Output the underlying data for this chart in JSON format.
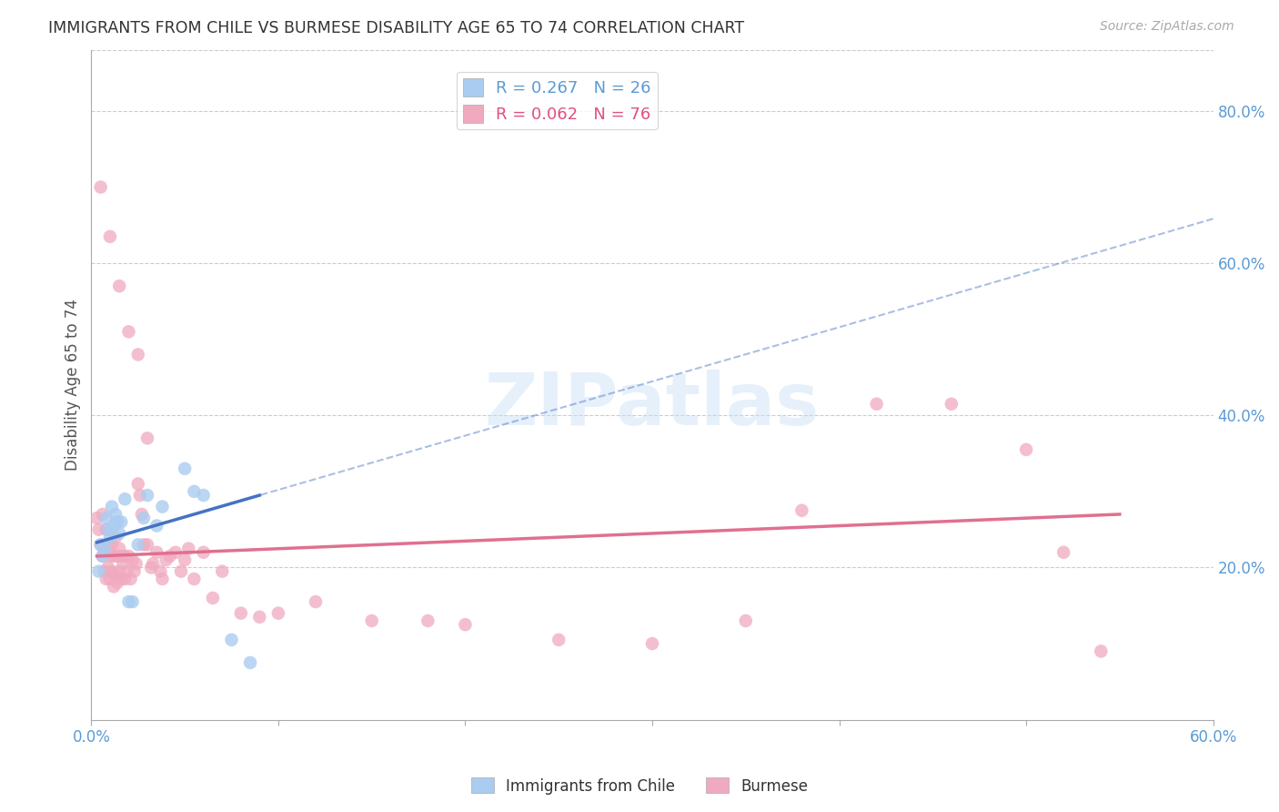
{
  "title": "IMMIGRANTS FROM CHILE VS BURMESE DISABILITY AGE 65 TO 74 CORRELATION CHART",
  "source": "Source: ZipAtlas.com",
  "ylabel": "Disability Age 65 to 74",
  "right_ytick_vals": [
    0.2,
    0.4,
    0.6,
    0.8
  ],
  "xlim": [
    0.0,
    0.6
  ],
  "ylim": [
    0.0,
    0.88
  ],
  "legend1_label": "R = 0.267   N = 26",
  "legend2_label": "R = 0.062   N = 76",
  "legend1_color": "#aaccf0",
  "legend2_color": "#f0aac0",
  "line1_color": "#4472c4",
  "line2_color": "#e07090",
  "watermark": "ZIPatlas",
  "chile_x": [
    0.004,
    0.005,
    0.006,
    0.007,
    0.008,
    0.009,
    0.01,
    0.011,
    0.012,
    0.013,
    0.014,
    0.015,
    0.016,
    0.018,
    0.02,
    0.022,
    0.025,
    0.028,
    0.03,
    0.035,
    0.038,
    0.05,
    0.055,
    0.06,
    0.075,
    0.085
  ],
  "chile_y": [
    0.195,
    0.23,
    0.215,
    0.225,
    0.265,
    0.25,
    0.24,
    0.28,
    0.255,
    0.27,
    0.26,
    0.245,
    0.26,
    0.29,
    0.155,
    0.155,
    0.23,
    0.265,
    0.295,
    0.255,
    0.28,
    0.33,
    0.3,
    0.295,
    0.105,
    0.075
  ],
  "burmese_x": [
    0.003,
    0.004,
    0.005,
    0.006,
    0.006,
    0.007,
    0.007,
    0.008,
    0.008,
    0.009,
    0.009,
    0.01,
    0.01,
    0.011,
    0.011,
    0.012,
    0.012,
    0.013,
    0.013,
    0.014,
    0.014,
    0.015,
    0.015,
    0.016,
    0.016,
    0.017,
    0.018,
    0.018,
    0.019,
    0.02,
    0.021,
    0.022,
    0.023,
    0.024,
    0.025,
    0.026,
    0.027,
    0.028,
    0.03,
    0.032,
    0.033,
    0.035,
    0.037,
    0.038,
    0.04,
    0.042,
    0.045,
    0.048,
    0.05,
    0.052,
    0.055,
    0.06,
    0.065,
    0.07,
    0.08,
    0.09,
    0.1,
    0.12,
    0.15,
    0.18,
    0.2,
    0.25,
    0.3,
    0.35,
    0.38,
    0.42,
    0.46,
    0.5,
    0.52,
    0.54,
    0.005,
    0.01,
    0.015,
    0.02,
    0.025,
    0.03
  ],
  "burmese_y": [
    0.265,
    0.25,
    0.23,
    0.215,
    0.27,
    0.195,
    0.22,
    0.185,
    0.25,
    0.2,
    0.23,
    0.185,
    0.215,
    0.195,
    0.23,
    0.175,
    0.215,
    0.19,
    0.24,
    0.18,
    0.215,
    0.195,
    0.225,
    0.185,
    0.215,
    0.205,
    0.185,
    0.215,
    0.195,
    0.215,
    0.185,
    0.21,
    0.195,
    0.205,
    0.31,
    0.295,
    0.27,
    0.23,
    0.23,
    0.2,
    0.205,
    0.22,
    0.195,
    0.185,
    0.21,
    0.215,
    0.22,
    0.195,
    0.21,
    0.225,
    0.185,
    0.22,
    0.16,
    0.195,
    0.14,
    0.135,
    0.14,
    0.155,
    0.13,
    0.13,
    0.125,
    0.105,
    0.1,
    0.13,
    0.275,
    0.415,
    0.415,
    0.355,
    0.22,
    0.09,
    0.7,
    0.635,
    0.57,
    0.51,
    0.48,
    0.37
  ]
}
